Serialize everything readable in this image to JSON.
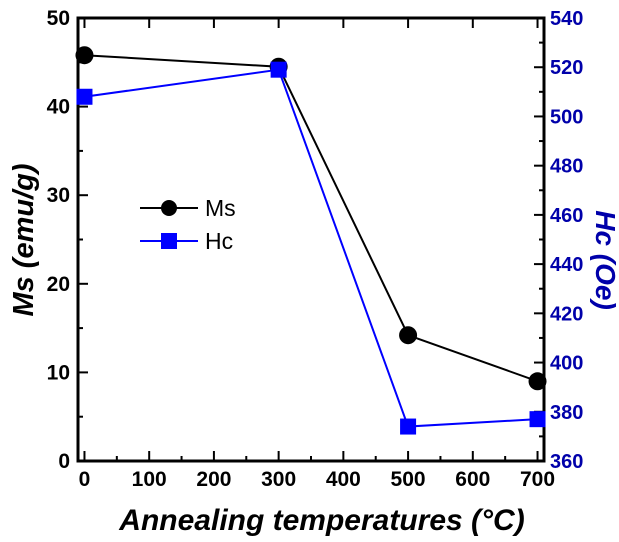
{
  "chart_data": {
    "type": "line",
    "title": "",
    "xlabel": "Annealing temperatures (°C)",
    "ylabel_left": "Ms (emu/g)",
    "ylabel_right": "Hc (Oe)",
    "xlim": [
      -10,
      710
    ],
    "ylim_left": [
      0,
      50
    ],
    "ylim_right": [
      360,
      540
    ],
    "xticks": [
      0,
      100,
      200,
      300,
      400,
      500,
      600,
      700
    ],
    "yticks_left": [
      0,
      10,
      20,
      30,
      40,
      50
    ],
    "yticks_right": [
      360,
      380,
      400,
      420,
      440,
      460,
      480,
      500,
      520,
      540
    ],
    "series": [
      {
        "name": "Ms",
        "axis": "left",
        "color": "#000000",
        "marker": "circle",
        "x": [
          0,
          300,
          500,
          700
        ],
        "y": [
          45.8,
          44.5,
          14.2,
          9.0
        ]
      },
      {
        "name": "Hc",
        "axis": "right",
        "color": "#0000ff",
        "marker": "square",
        "x": [
          0,
          300,
          500,
          700
        ],
        "y": [
          508,
          519,
          374,
          377
        ]
      }
    ],
    "legend": "center-left",
    "grid": false,
    "colors": {
      "left_axis": "#000000",
      "right_axis": "#0000aa"
    }
  }
}
